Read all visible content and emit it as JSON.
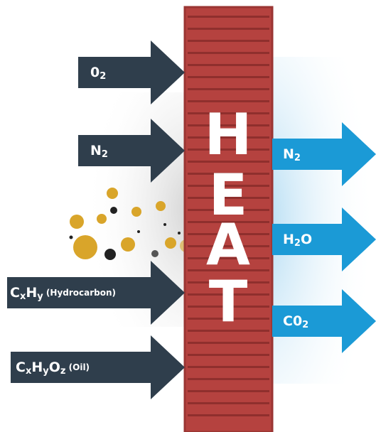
{
  "heat": [
    "H",
    "E",
    "A",
    "T"
  ],
  "inputs": [
    {
      "label": [
        {
          "text": "0"
        },
        {
          "sub": "2"
        }
      ]
    },
    {
      "label": [
        {
          "text": "N"
        },
        {
          "sub": "2"
        }
      ]
    },
    {
      "label": [
        {
          "text": "C"
        },
        {
          "sub": "x"
        },
        {
          "text": "H"
        },
        {
          "sub": "y"
        },
        {
          "small": " (Hydrocarbon)"
        }
      ]
    },
    {
      "label": [
        {
          "text": "C"
        },
        {
          "sub": "x"
        },
        {
          "text": "H"
        },
        {
          "sub": "y"
        },
        {
          "text": "O"
        },
        {
          "sub": "z"
        },
        {
          "small": " (Oil)"
        }
      ]
    }
  ],
  "outputs": [
    {
      "label": [
        {
          "text": "N"
        },
        {
          "sub": "2"
        }
      ]
    },
    {
      "label": [
        {
          "text": "H"
        },
        {
          "sub": "2"
        },
        {
          "text": "O"
        }
      ]
    },
    {
      "label": [
        {
          "text": "C0"
        },
        {
          "sub": "2"
        }
      ]
    }
  ]
}
